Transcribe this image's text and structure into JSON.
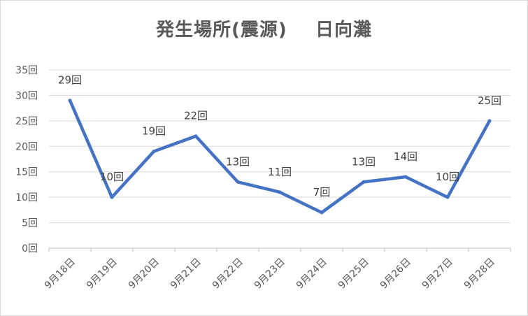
{
  "chart_data": {
    "type": "line",
    "title": "発生場所(震源)    日向灘",
    "xlabel": "",
    "ylabel": "",
    "categories": [
      "9月18日",
      "9月19日",
      "9月20日",
      "9月21日",
      "9月22日",
      "9月23日",
      "9月24日",
      "9月25日",
      "9月26日",
      "9月27日",
      "9月28日"
    ],
    "series": [
      {
        "values": [
          29,
          10,
          19,
          22,
          13,
          11,
          7,
          13,
          14,
          10,
          25
        ],
        "data_labels": [
          "29回",
          "10回",
          "19回",
          "22回",
          "13回",
          "11回",
          "7回",
          "13回",
          "14回",
          "10回",
          "25回"
        ],
        "color": "#4472c4"
      }
    ],
    "ylim": [
      0,
      35
    ],
    "yticks": [
      0,
      5,
      10,
      15,
      20,
      25,
      30,
      35
    ],
    "ytick_labels": [
      "0回",
      "5回",
      "10回",
      "15回",
      "20回",
      "25回",
      "30回",
      "35回"
    ],
    "grid": true,
    "legend": "none"
  }
}
